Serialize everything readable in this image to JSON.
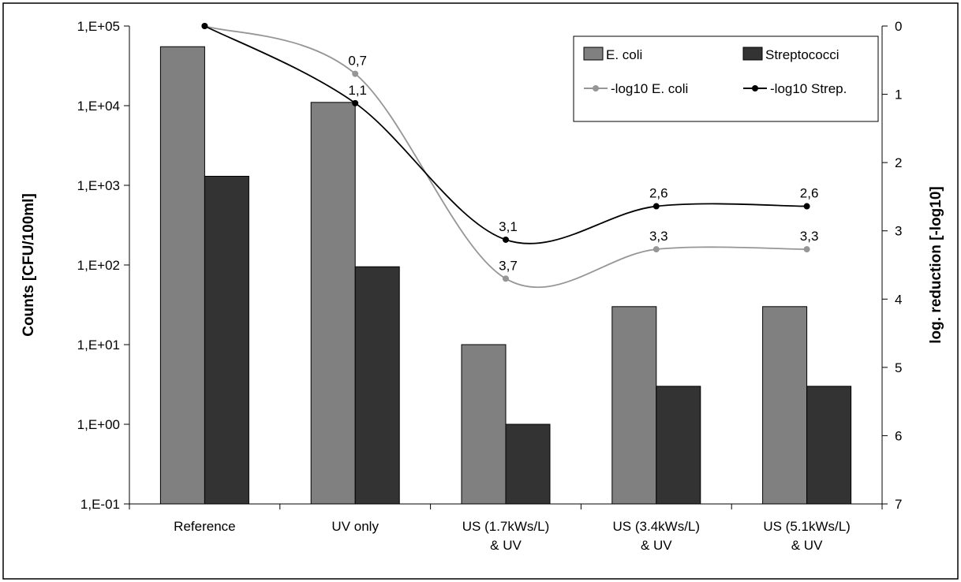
{
  "chart_data": {
    "type": "bar",
    "categories": [
      [
        "Reference"
      ],
      [
        "UV only"
      ],
      [
        "US (1.7kWs/L)",
        "& UV"
      ],
      [
        "US (3.4kWs/L)",
        "& UV"
      ],
      [
        "US (5.1kWs/L)",
        "& UV"
      ]
    ],
    "yscale": "log",
    "ylim": [
      0.1,
      100000
    ],
    "ylabel": "Counts [CFU/100ml]",
    "yticks": [
      "1,E-01",
      "1,E+00",
      "1,E+01",
      "1,E+02",
      "1,E+03",
      "1,E+04",
      "1,E+05"
    ],
    "y2lim": [
      0,
      7
    ],
    "y2_inverted": true,
    "y2label": "log. reduction [-log10]",
    "y2ticks": [
      "0",
      "1",
      "2",
      "3",
      "4",
      "5",
      "6",
      "7"
    ],
    "bar_series": [
      {
        "name": "E. coli",
        "color": "#808080",
        "values": [
          55000,
          11000,
          10,
          30,
          30
        ]
      },
      {
        "name": "Streptococci",
        "color": "#333333",
        "values": [
          1300,
          95,
          1,
          3,
          3
        ]
      }
    ],
    "line_series": [
      {
        "name": "-log10 E. coli",
        "color": "#969696",
        "values": [
          0,
          0.7,
          3.7,
          3.27,
          3.27
        ],
        "labels": [
          "",
          "0,7",
          "3,7",
          "3,3",
          "3,3"
        ]
      },
      {
        "name": "-log10 Strep.",
        "color": "#000000",
        "values": [
          0,
          1.13,
          3.13,
          2.64,
          2.64
        ],
        "labels": [
          "",
          "1,1",
          "3,1",
          "2,6",
          "2,6"
        ]
      }
    ],
    "legend_position": "top-right",
    "grid": false
  }
}
